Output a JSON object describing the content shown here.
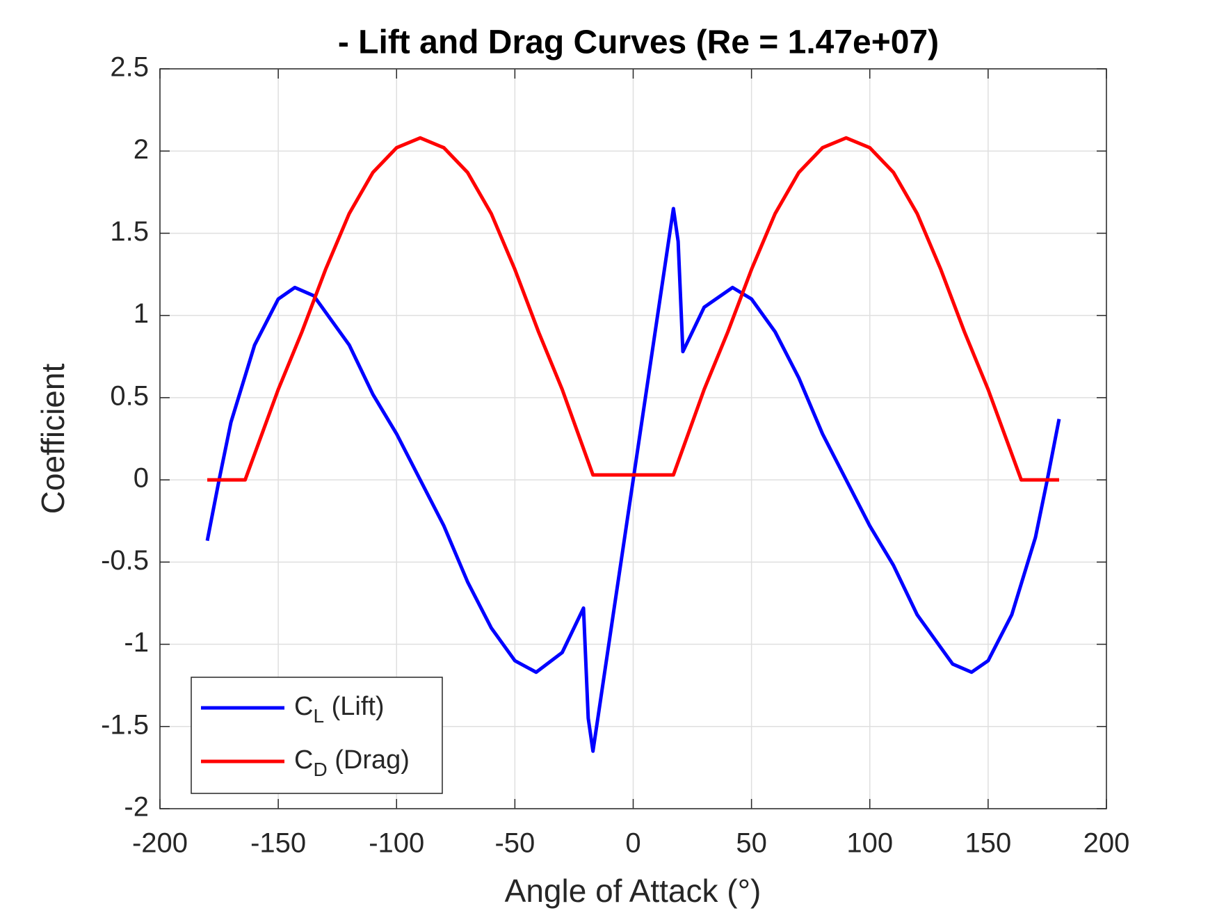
{
  "chart_data": {
    "type": "line",
    "title": "- Lift and Drag Curves (Re = 1.47e+07)",
    "xlabel": "Angle of Attack (°)",
    "ylabel": "Coefficient",
    "xlim": [
      -200,
      200
    ],
    "xticks": [
      -200,
      -150,
      -100,
      -50,
      0,
      50,
      100,
      150,
      200
    ],
    "ylim": [
      -2,
      2.5
    ],
    "yticks": [
      -2,
      -1.5,
      -1,
      -0.5,
      0,
      0.5,
      1,
      1.5,
      2,
      2.5
    ],
    "grid": true,
    "legend": "lower left",
    "series": [
      {
        "name": "CL (Lift)",
        "color": "#0000ff",
        "x": [
          -180,
          -175,
          -170,
          -160,
          -150,
          -143,
          -135,
          -120,
          -110,
          -100,
          -90,
          -80,
          -70,
          -60,
          -50,
          -41,
          -30,
          -21,
          -19,
          -17,
          -10,
          0,
          10,
          17,
          19,
          21,
          30,
          42,
          50,
          60,
          70,
          80,
          90,
          100,
          110,
          120,
          135,
          143,
          150,
          160,
          170,
          175,
          180
        ],
        "values": [
          -0.37,
          0,
          0.35,
          0.82,
          1.1,
          1.17,
          1.12,
          0.82,
          0.52,
          0.28,
          0,
          -0.28,
          -0.62,
          -0.9,
          -1.1,
          -1.17,
          -1.05,
          -0.78,
          -1.45,
          -1.65,
          -0.97,
          0,
          0.97,
          1.65,
          1.45,
          0.78,
          1.05,
          1.17,
          1.1,
          0.9,
          0.62,
          0.28,
          0,
          -0.28,
          -0.52,
          -0.82,
          -1.12,
          -1.17,
          -1.1,
          -0.82,
          -0.35,
          0,
          0.37
        ]
      },
      {
        "name": "CD (Drag)",
        "color": "#ff0000",
        "x": [
          -180,
          -164,
          -150,
          -140,
          -130,
          -120,
          -110,
          -100,
          -90,
          -80,
          -70,
          -60,
          -50,
          -40,
          -30,
          -17,
          0,
          17,
          30,
          40,
          50,
          60,
          70,
          80,
          90,
          100,
          110,
          120,
          130,
          140,
          150,
          164,
          180
        ],
        "values": [
          0,
          0,
          0.55,
          0.9,
          1.28,
          1.62,
          1.87,
          2.02,
          2.08,
          2.02,
          1.87,
          1.62,
          1.28,
          0.9,
          0.55,
          0.03,
          0.03,
          0.03,
          0.55,
          0.9,
          1.28,
          1.62,
          1.87,
          2.02,
          2.08,
          2.02,
          1.87,
          1.62,
          1.28,
          0.9,
          0.55,
          0,
          0
        ]
      }
    ]
  }
}
